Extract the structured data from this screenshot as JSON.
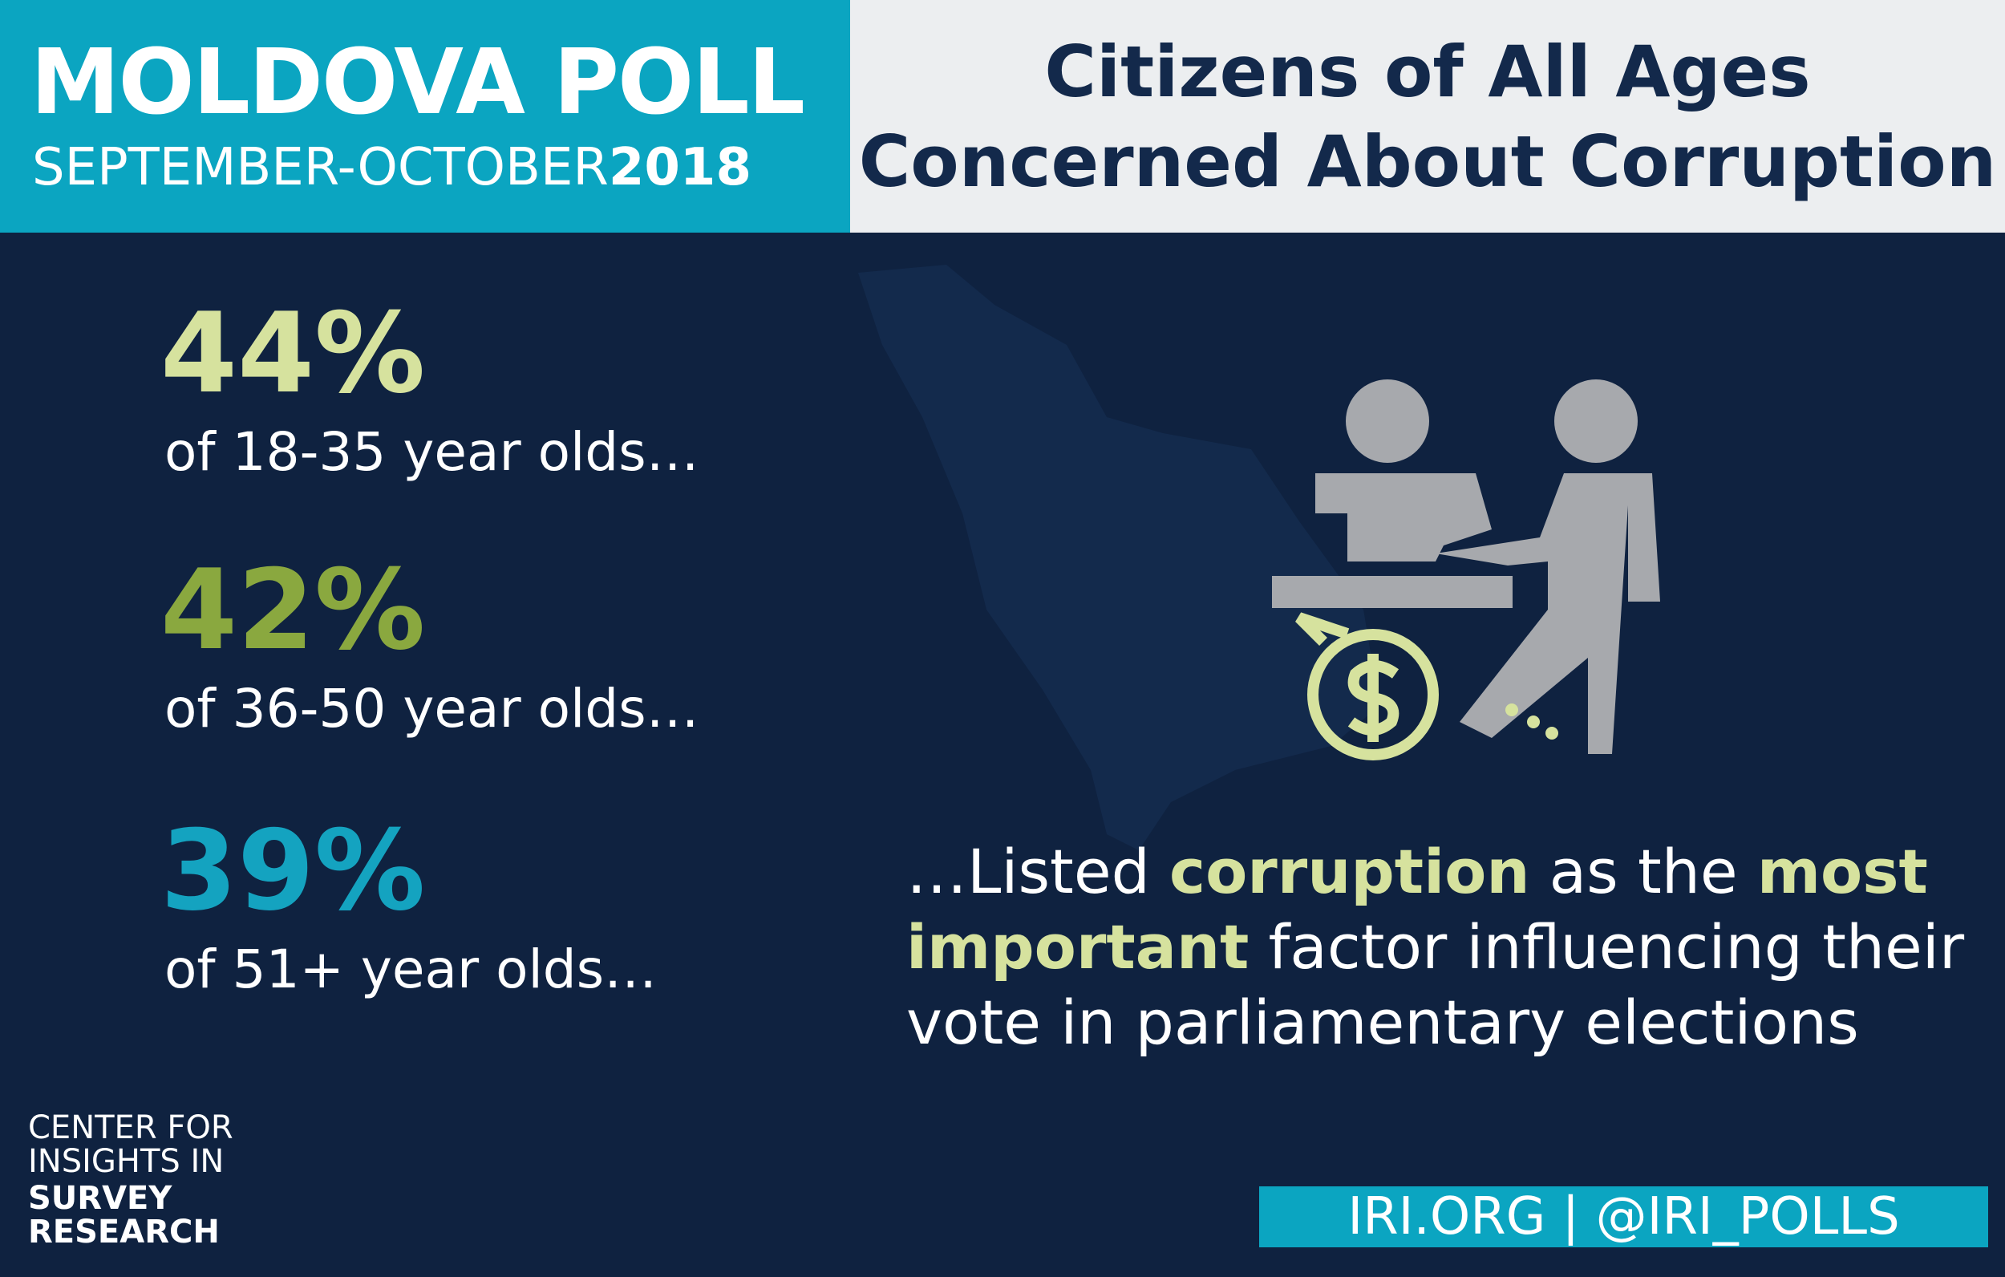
{
  "header": {
    "brand": "MOLDOVA POLL",
    "period": "SEPTEMBER-OCTOBER",
    "year": "2018",
    "title": [
      "Citizens of All Ages",
      "Concerned About Corruption"
    ]
  },
  "stats": [
    {
      "value": "44%",
      "label": "of 18-35 year olds…",
      "color": "#d6e29e"
    },
    {
      "value": "42%",
      "label": "of 36-50 year olds…",
      "color": "#8aa83f"
    },
    {
      "value": "39%",
      "label": "of 51+ year olds…",
      "color": "#14a3c0"
    }
  ],
  "statement": [
    {
      "text": "…Listed ",
      "emphasis": false
    },
    {
      "text": "corruption",
      "emphasis": true
    },
    {
      "text": " as the ",
      "emphasis": false
    },
    {
      "text": "most important",
      "emphasis": true
    },
    {
      "text": " factor influencing their vote in parliamentary elections",
      "emphasis": false
    }
  ],
  "logo": [
    "CENTER FOR",
    "INSIGHTS IN",
    "SURVEY",
    "RESEARCH"
  ],
  "footer": "IRI.ORG | @IRI_POLLS"
}
